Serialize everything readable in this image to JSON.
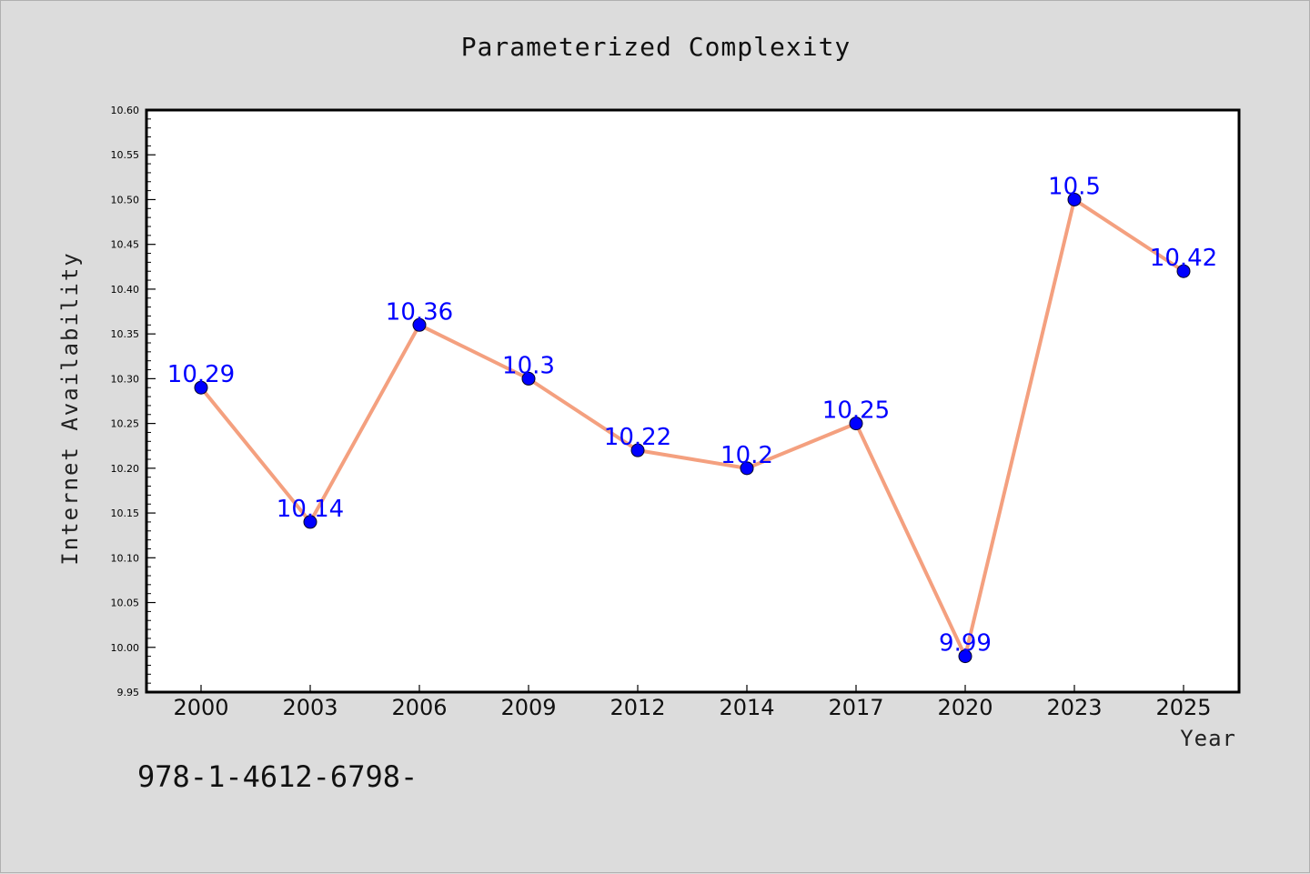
{
  "footer": {
    "code": "978-1-4612-6798-"
  },
  "chart_data": {
    "type": "line",
    "title": "Parameterized Complexity",
    "xlabel": "Year",
    "ylabel": "Internet Availability",
    "categories": [
      "2000",
      "2003",
      "2006",
      "2009",
      "2012",
      "2014",
      "2017",
      "2020",
      "2023",
      "2025"
    ],
    "series": [
      {
        "values": [
          10.29,
          10.14,
          10.36,
          10.3,
          10.22,
          10.2,
          10.25,
          9.99,
          10.5,
          10.42
        ],
        "data_labels": [
          "10.29",
          "10.14",
          "10.36",
          "10.3",
          "10.22",
          "10.2",
          "10.25",
          "9.99",
          "10.5",
          "10.42"
        ]
      }
    ],
    "ylim": [
      9.95,
      10.6
    ],
    "yticks": [
      "9.95",
      "10.00",
      "10.05",
      "10.10",
      "10.15",
      "10.20",
      "10.25",
      "10.30",
      "10.35",
      "10.40",
      "10.45",
      "10.50",
      "10.55",
      "10.60"
    ],
    "grid": false,
    "legend": "none",
    "colors": {
      "line": "#f4a07f",
      "marker": "#0000ff",
      "label": "#0000ff",
      "figure_background": "#dcdcdc",
      "plot_background": "#ffffff"
    }
  }
}
